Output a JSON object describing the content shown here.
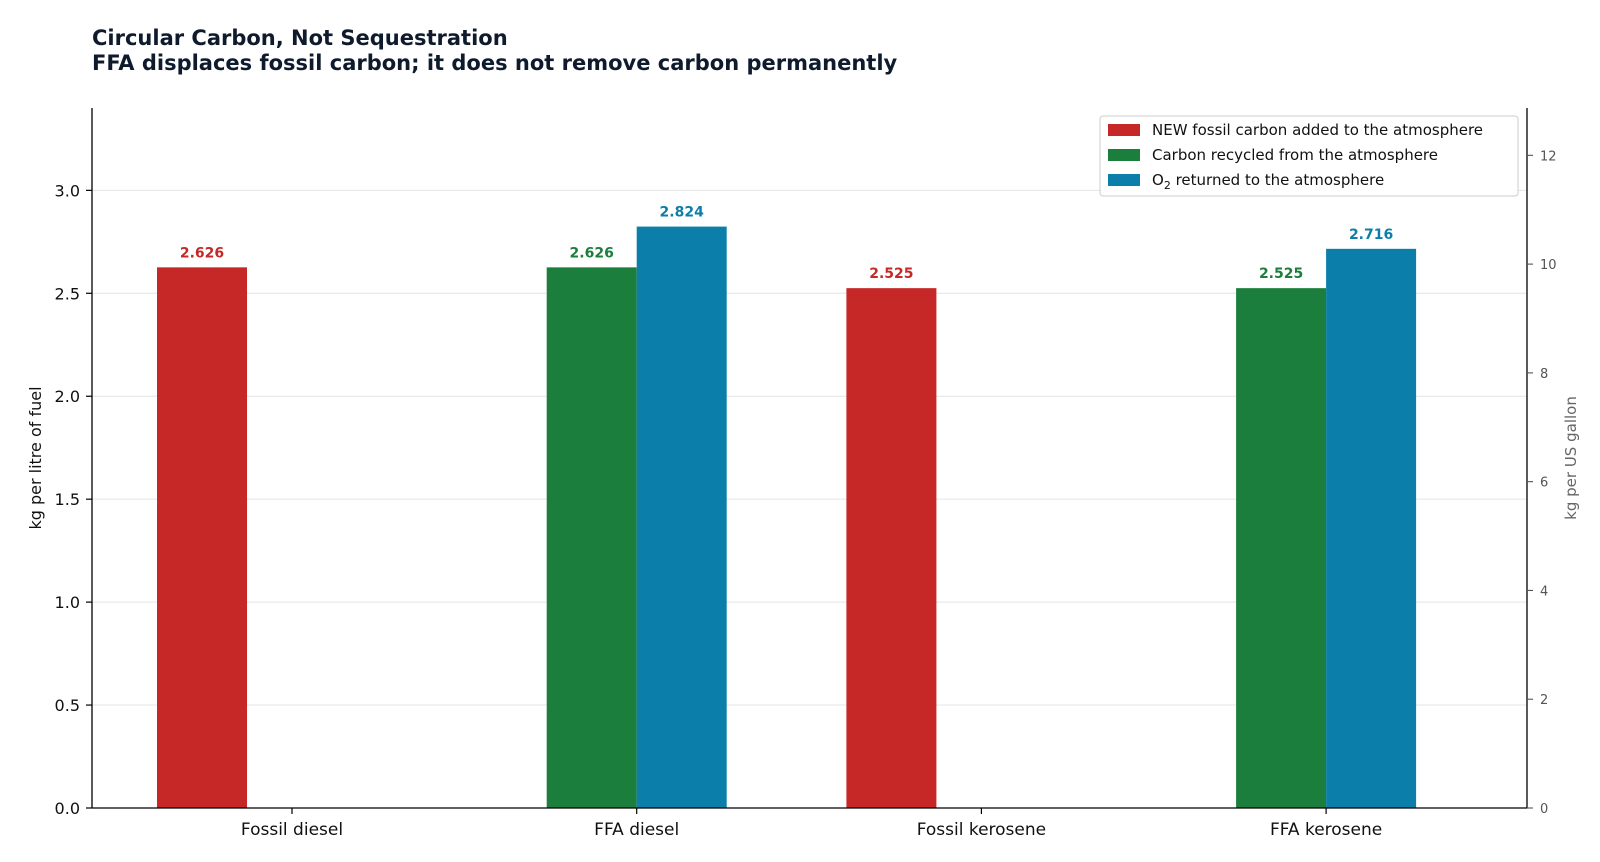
{
  "chart_data": {
    "type": "bar",
    "title": "Circular Carbon, Not Sequestration",
    "subtitle": "FFA displaces fossil carbon; it does not remove carbon permanently",
    "categories": [
      "Fossil diesel",
      "FFA diesel",
      "Fossil kerosene",
      "FFA kerosene"
    ],
    "series": [
      {
        "name": "NEW fossil carbon added to the atmosphere",
        "color": "#c62828",
        "values": [
          2.626,
          null,
          2.525,
          null
        ],
        "labels": [
          "2.626",
          "",
          "2.525",
          ""
        ]
      },
      {
        "name": "Carbon recycled from the atmosphere",
        "color": "#1b7e3c",
        "values": [
          null,
          2.626,
          null,
          2.525
        ],
        "labels": [
          "",
          "2.626",
          "",
          "2.525"
        ]
      },
      {
        "name_parts": [
          "O",
          "2",
          " returned to the atmosphere"
        ],
        "color": "#0b7eaa",
        "values": [
          null,
          2.824,
          null,
          2.716
        ],
        "labels": [
          "",
          "2.824",
          "",
          "2.716"
        ]
      }
    ],
    "ylabel": "kg per litre of fuel",
    "y2label": "kg per US gallon",
    "ylim": [
      0,
      3.4
    ],
    "y_ticks": [
      "0.0",
      "0.5",
      "1.0",
      "1.5",
      "2.0",
      "2.5",
      "3.0"
    ],
    "y2_ticks": [
      "0",
      "2",
      "4",
      "6",
      "8",
      "10",
      "12"
    ],
    "y2_per_y": 3.785411784,
    "grid": "horizontal",
    "legend_position": "top-right"
  }
}
